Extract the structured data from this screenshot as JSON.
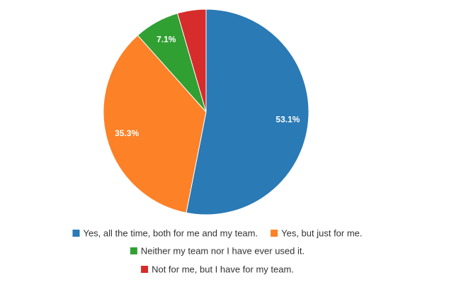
{
  "chart_data": {
    "type": "pie",
    "categories": [
      "Yes, all the time, both for me and my team.",
      "Yes, but just for me.",
      "Neither my team nor I have ever used it.",
      "Not for me, but I have for my team."
    ],
    "values": [
      53.1,
      35.3,
      7.1,
      4.5
    ],
    "value_labels": [
      "53.1%",
      "35.3%",
      "7.1%",
      null
    ],
    "colors": [
      "#2a7ab5",
      "#fd8127",
      "#31a032",
      "#d62c2b"
    ]
  }
}
